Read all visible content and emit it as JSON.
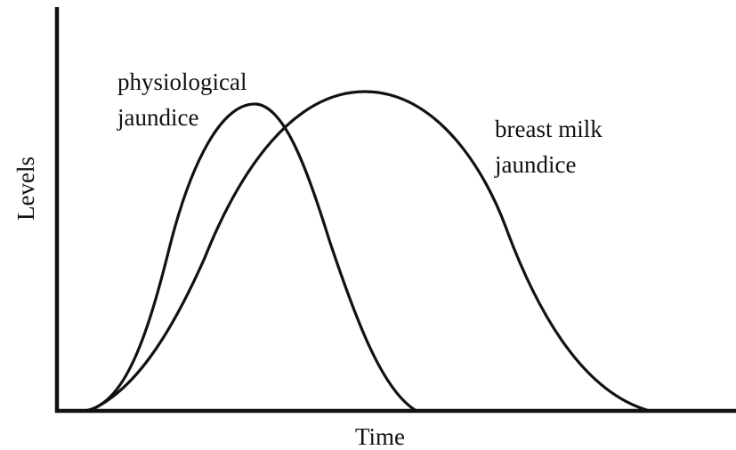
{
  "axes": {
    "y_label": "Levels",
    "x_label": "Time"
  },
  "curves": [
    {
      "label_lines": [
        "physiological",
        "jaundice"
      ]
    },
    {
      "label_lines": [
        "breast milk",
        "jaundice"
      ]
    }
  ]
}
